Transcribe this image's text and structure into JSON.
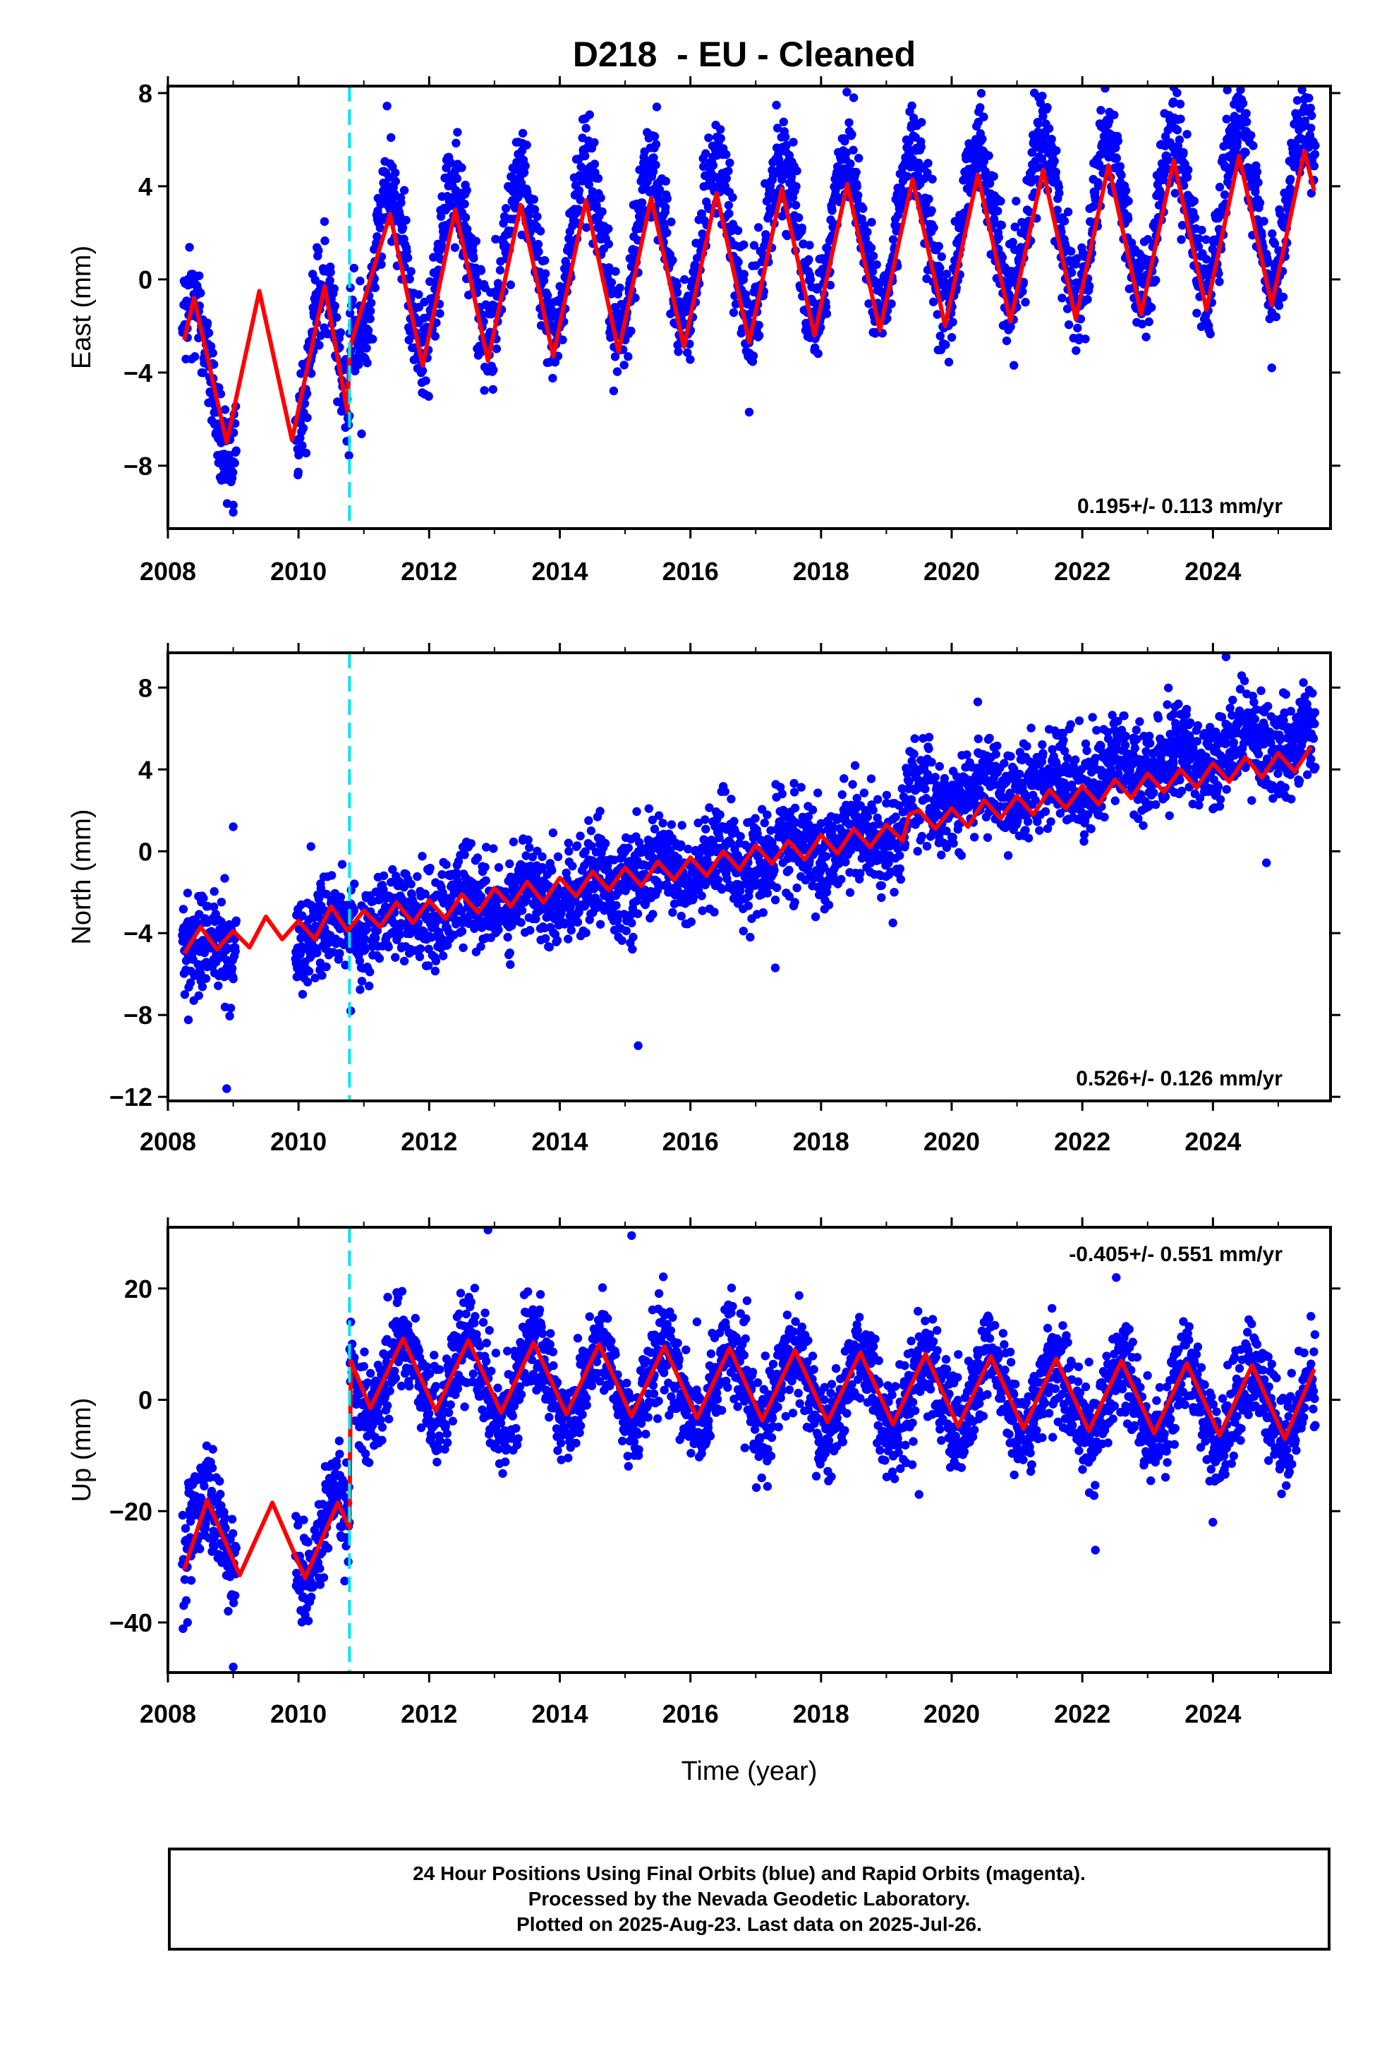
{
  "title": "D218  - EU - Cleaned",
  "colors": {
    "data_points": "#0000ff",
    "model_fit": "#ff0000",
    "equipment_change": "#00e5ee",
    "frame": "#000000"
  },
  "chart_data": [
    {
      "type": "scatter",
      "ylabel": "East (mm)",
      "xlabel": "",
      "xlim": [
        2008,
        2025.8
      ],
      "ylim": [
        -10.7,
        8.3
      ],
      "xticks": [
        "2008",
        "2010",
        "2012",
        "2014",
        "2016",
        "2018",
        "2020",
        "2022",
        "2024"
      ],
      "yticks": [
        "8",
        "4",
        "0",
        "-4",
        "-8"
      ],
      "rate_label": "0.195+/- 0.113 mm/yr",
      "rate_label_position": "bottom-right",
      "equipment_change_year": 2010.78,
      "series": [
        {
          "type": "scatter",
          "color": "blue",
          "model": {
            "trend_per_year": 0.195,
            "annual_amp": 3.4,
            "annual_peak_phase": 0.42,
            "semiannual_amp": 0.2,
            "noise_sd": 1.05,
            "offset_at_2010_78": 1.0
          },
          "sample_points": [
            [
              2008.3,
              -2.5
            ],
            [
              2008.8,
              -8.5
            ],
            [
              2009.0,
              -10.0
            ],
            [
              2010.5,
              -0.5
            ],
            [
              2011.4,
              3.0
            ],
            [
              2013.4,
              4.0
            ],
            [
              2016.9,
              -5.7
            ],
            [
              2018.5,
              7.8
            ],
            [
              2023.4,
              7.6
            ],
            [
              2024.9,
              -3.8
            ],
            [
              2025.5,
              6.5
            ]
          ]
        },
        {
          "type": "line",
          "color": "red",
          "points": [
            [
              2008.25,
              -2.6
            ],
            [
              2008.4,
              -0.8
            ],
            [
              2008.9,
              -7.0
            ],
            [
              2009.4,
              -0.5
            ],
            [
              2009.9,
              -6.9
            ],
            [
              2010.4,
              -0.3
            ],
            [
              2010.75,
              -5.7
            ],
            [
              2010.78,
              -3.0
            ],
            [
              2011.4,
              2.8
            ],
            [
              2011.9,
              -3.7
            ],
            [
              2012.4,
              3.0
            ],
            [
              2012.9,
              -3.5
            ],
            [
              2013.4,
              3.2
            ],
            [
              2013.9,
              -3.3
            ],
            [
              2014.4,
              3.4
            ],
            [
              2014.9,
              -3.1
            ],
            [
              2015.4,
              3.5
            ],
            [
              2015.9,
              -2.9
            ],
            [
              2016.4,
              3.7
            ],
            [
              2016.9,
              -2.7
            ],
            [
              2017.4,
              3.9
            ],
            [
              2017.9,
              -2.4
            ],
            [
              2018.4,
              4.1
            ],
            [
              2018.9,
              -2.2
            ],
            [
              2019.4,
              4.3
            ],
            [
              2019.9,
              -2.0
            ],
            [
              2020.4,
              4.5
            ],
            [
              2020.9,
              -1.8
            ],
            [
              2021.4,
              4.7
            ],
            [
              2021.9,
              -1.7
            ],
            [
              2022.4,
              4.9
            ],
            [
              2022.9,
              -1.5
            ],
            [
              2023.4,
              5.1
            ],
            [
              2023.9,
              -1.3
            ],
            [
              2024.4,
              5.3
            ],
            [
              2024.9,
              -1.1
            ],
            [
              2025.4,
              5.5
            ],
            [
              2025.55,
              3.8
            ]
          ]
        }
      ]
    },
    {
      "type": "scatter",
      "ylabel": "North (mm)",
      "xlabel": "",
      "xlim": [
        2008,
        2025.8
      ],
      "ylim": [
        -12.2,
        9.7
      ],
      "xticks": [
        "2008",
        "2010",
        "2012",
        "2014",
        "2016",
        "2018",
        "2020",
        "2022",
        "2024"
      ],
      "yticks": [
        "8",
        "4",
        "0",
        "-4",
        "-8",
        "-12"
      ],
      "rate_label": "0.526+/- 0.126 mm/yr",
      "rate_label_position": "bottom-right",
      "equipment_change_year": 2010.78,
      "series": [
        {
          "type": "scatter",
          "color": "blue",
          "model": {
            "trend_per_year": 0.526,
            "annual_amp": 0.55,
            "noise_sd": 1.15,
            "offset_at_2019_3": 1.4
          },
          "sample_points": [
            [
              2008.3,
              -5.0
            ],
            [
              2008.9,
              -11.6
            ],
            [
              2009.0,
              1.2
            ],
            [
              2010.8,
              -7.8
            ],
            [
              2015.2,
              -9.5
            ],
            [
              2017.3,
              -5.7
            ],
            [
              2019.1,
              -3.5
            ],
            [
              2020.4,
              7.3
            ],
            [
              2024.2,
              9.5
            ],
            [
              2025.5,
              4.5
            ]
          ]
        },
        {
          "type": "line",
          "color": "red",
          "points": [
            [
              2008.25,
              -5.0
            ],
            [
              2008.5,
              -3.7
            ],
            [
              2008.75,
              -4.8
            ],
            [
              2009.0,
              -3.9
            ],
            [
              2009.25,
              -4.7
            ],
            [
              2009.5,
              -3.2
            ],
            [
              2009.75,
              -4.3
            ],
            [
              2010.0,
              -3.4
            ],
            [
              2010.25,
              -4.3
            ],
            [
              2010.5,
              -2.7
            ],
            [
              2010.75,
              -3.9
            ],
            [
              2011.0,
              -2.9
            ],
            [
              2011.25,
              -3.7
            ],
            [
              2011.5,
              -2.5
            ],
            [
              2011.75,
              -3.5
            ],
            [
              2012.0,
              -2.4
            ],
            [
              2012.25,
              -3.3
            ],
            [
              2012.5,
              -2.1
            ],
            [
              2012.75,
              -3.0
            ],
            [
              2013.0,
              -1.8
            ],
            [
              2013.25,
              -2.7
            ],
            [
              2013.5,
              -1.5
            ],
            [
              2013.75,
              -2.5
            ],
            [
              2014.0,
              -1.3
            ],
            [
              2014.25,
              -2.2
            ],
            [
              2014.5,
              -1.0
            ],
            [
              2014.75,
              -1.9
            ],
            [
              2015.0,
              -0.8
            ],
            [
              2015.25,
              -1.7
            ],
            [
              2015.5,
              -0.5
            ],
            [
              2015.75,
              -1.4
            ],
            [
              2016.0,
              -0.3
            ],
            [
              2016.25,
              -1.2
            ],
            [
              2016.5,
              0.0
            ],
            [
              2016.75,
              -0.9
            ],
            [
              2017.0,
              0.3
            ],
            [
              2017.25,
              -0.6
            ],
            [
              2017.5,
              0.5
            ],
            [
              2017.75,
              -0.4
            ],
            [
              2018.0,
              0.8
            ],
            [
              2018.25,
              -0.1
            ],
            [
              2018.5,
              1.1
            ],
            [
              2018.75,
              0.2
            ],
            [
              2019.0,
              1.3
            ],
            [
              2019.25,
              0.5
            ],
            [
              2019.35,
              1.8
            ],
            [
              2019.5,
              2.0
            ],
            [
              2019.75,
              1.1
            ],
            [
              2020.0,
              2.1
            ],
            [
              2020.25,
              1.2
            ],
            [
              2020.5,
              2.5
            ],
            [
              2020.75,
              1.6
            ],
            [
              2021.0,
              2.7
            ],
            [
              2021.25,
              1.8
            ],
            [
              2021.5,
              3.0
            ],
            [
              2021.75,
              2.1
            ],
            [
              2022.0,
              3.2
            ],
            [
              2022.25,
              2.3
            ],
            [
              2022.5,
              3.5
            ],
            [
              2022.75,
              2.6
            ],
            [
              2023.0,
              3.8
            ],
            [
              2023.25,
              2.9
            ],
            [
              2023.5,
              4.0
            ],
            [
              2023.75,
              3.1
            ],
            [
              2024.0,
              4.3
            ],
            [
              2024.25,
              3.4
            ],
            [
              2024.5,
              4.6
            ],
            [
              2024.75,
              3.6
            ],
            [
              2025.0,
              4.8
            ],
            [
              2025.25,
              3.9
            ],
            [
              2025.5,
              5.1
            ]
          ]
        }
      ]
    },
    {
      "type": "scatter",
      "ylabel": "Up (mm)",
      "xlabel": "Time (year)",
      "xlim": [
        2008,
        2025.8
      ],
      "ylim": [
        -49,
        31
      ],
      "xticks": [
        "2008",
        "2010",
        "2012",
        "2014",
        "2016",
        "2018",
        "2020",
        "2022",
        "2024"
      ],
      "yticks": [
        "20",
        "0",
        "-20",
        "-40"
      ],
      "rate_label": "-0.405+/- 0.551 mm/yr",
      "rate_label_position": "top-right",
      "equipment_change_year": 2010.78,
      "series": [
        {
          "type": "scatter",
          "color": "blue",
          "model": {
            "trend_per_year": -0.405,
            "annual_amp": 6.8,
            "noise_sd": 4.3,
            "offset_at_2010_78": 26.0
          },
          "sample_points": [
            [
              2008.3,
              -40.0
            ],
            [
              2008.5,
              -18.0
            ],
            [
              2009.0,
              -48.0
            ],
            [
              2010.7,
              -15.0
            ],
            [
              2011.0,
              6.0
            ],
            [
              2012.9,
              30.5
            ],
            [
              2015.1,
              29.5
            ],
            [
              2016.1,
              14.0
            ],
            [
              2019.5,
              -17.0
            ],
            [
              2022.2,
              -27.0
            ],
            [
              2024.0,
              -22.0
            ],
            [
              2025.5,
              15.0
            ]
          ]
        },
        {
          "type": "line",
          "color": "red",
          "points": [
            [
              2008.25,
              -30.5
            ],
            [
              2008.6,
              -18.0
            ],
            [
              2009.1,
              -31.5
            ],
            [
              2009.6,
              -18.5
            ],
            [
              2010.1,
              -32.0
            ],
            [
              2010.6,
              -18.5
            ],
            [
              2010.78,
              -23.0
            ],
            [
              2010.8,
              7.0
            ],
            [
              2011.1,
              -1.5
            ],
            [
              2011.6,
              11.0
            ],
            [
              2012.1,
              -2.0
            ],
            [
              2012.6,
              10.7
            ],
            [
              2013.1,
              -2.3
            ],
            [
              2013.6,
              10.3
            ],
            [
              2014.1,
              -2.6
            ],
            [
              2014.6,
              10.0
            ],
            [
              2015.1,
              -3.0
            ],
            [
              2015.6,
              9.6
            ],
            [
              2016.1,
              -3.3
            ],
            [
              2016.6,
              9.3
            ],
            [
              2017.1,
              -3.7
            ],
            [
              2017.6,
              8.9
            ],
            [
              2018.1,
              -4.0
            ],
            [
              2018.6,
              8.5
            ],
            [
              2019.1,
              -4.4
            ],
            [
              2019.6,
              8.2
            ],
            [
              2020.1,
              -4.8
            ],
            [
              2020.6,
              7.8
            ],
            [
              2021.1,
              -5.2
            ],
            [
              2021.6,
              7.4
            ],
            [
              2022.1,
              -5.6
            ],
            [
              2022.6,
              7.0
            ],
            [
              2023.1,
              -6.0
            ],
            [
              2023.6,
              6.6
            ],
            [
              2024.1,
              -6.4
            ],
            [
              2024.6,
              6.2
            ],
            [
              2025.1,
              -7.0
            ],
            [
              2025.55,
              5.5
            ]
          ]
        }
      ]
    }
  ],
  "footer": {
    "line1": "24 Hour Positions Using Final Orbits (blue) and Rapid Orbits (magenta).",
    "line2": "Processed by the Nevada Geodetic Laboratory.",
    "line3": "Plotted on 2025-Aug-23. Last data on 2025-Jul-26."
  }
}
